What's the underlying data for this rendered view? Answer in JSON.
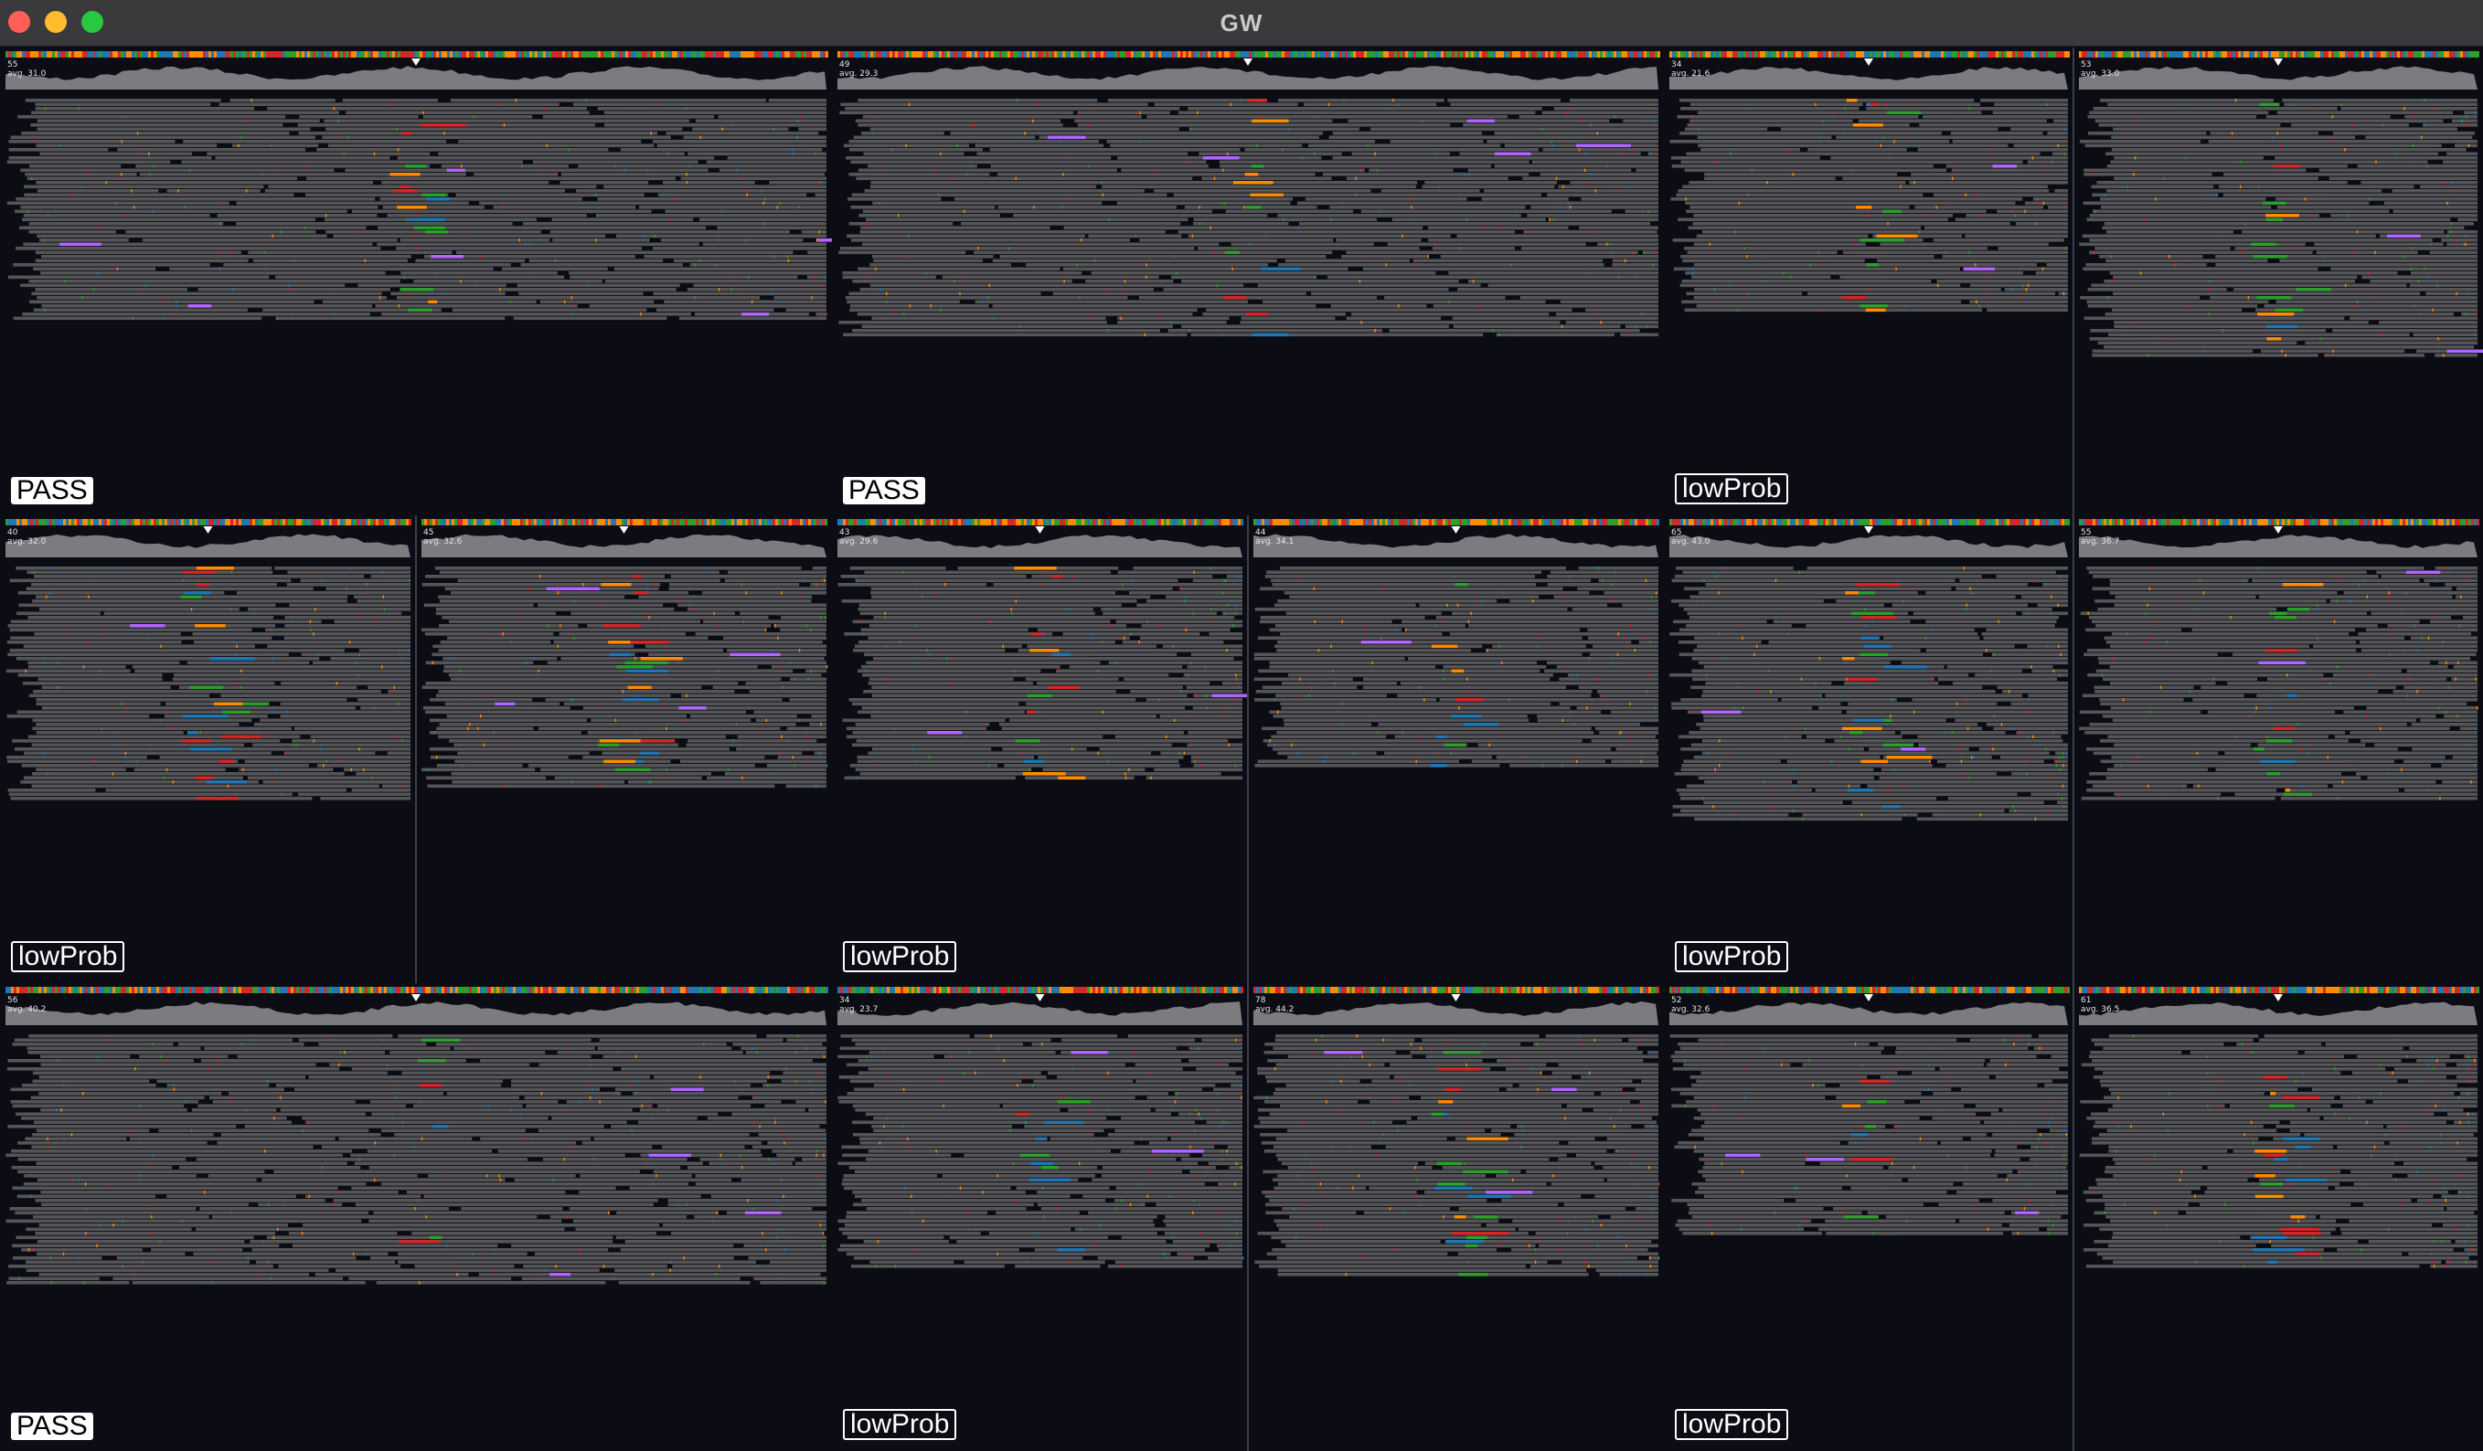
{
  "window": {
    "title": "GW"
  },
  "colors": {
    "background": "#0b0c14",
    "read": "#555558",
    "coverage": "#7c7c80",
    "pass_label_bg": "#ffffff",
    "lowprob_label_border": "#ffffff",
    "mismatch_A": "#2ca02c",
    "mismatch_C": "#1f77b4",
    "mismatch_G": "#ff8c00",
    "mismatch_T": "#d62728",
    "insertion": "#b266ff",
    "deletion": "#000000"
  },
  "tiles": [
    {
      "filter": "PASS",
      "panels": [
        {
          "max": "55",
          "avg": "avg. 31.0"
        }
      ]
    },
    {
      "filter": "PASS",
      "panels": [
        {
          "max": "49",
          "avg": "avg. 29.3"
        }
      ]
    },
    {
      "filter": "lowProb",
      "panels": [
        {
          "max": "34",
          "avg": "avg. 21.6"
        },
        {
          "max": "53",
          "avg": "avg. 33.0"
        }
      ]
    },
    {
      "filter": "lowProb",
      "panels": [
        {
          "max": "40",
          "avg": "avg. 32.0"
        },
        {
          "max": "45",
          "avg": "avg. 32.6"
        }
      ]
    },
    {
      "filter": "lowProb",
      "panels": [
        {
          "max": "43",
          "avg": "avg. 29.6"
        },
        {
          "max": "44",
          "avg": "avg. 34.1"
        }
      ]
    },
    {
      "filter": "lowProb",
      "panels": [
        {
          "max": "65",
          "avg": "avg. 43.0"
        },
        {
          "max": "55",
          "avg": "avg. 36.7"
        }
      ]
    },
    {
      "filter": "PASS",
      "panels": [
        {
          "max": "56",
          "avg": "avg. 40.2"
        }
      ]
    },
    {
      "filter": "lowProb",
      "panels": [
        {
          "max": "34",
          "avg": "avg. 23.7"
        },
        {
          "max": "78",
          "avg": "avg. 44.2"
        }
      ]
    },
    {
      "filter": "lowProb",
      "panels": [
        {
          "max": "52",
          "avg": "avg. 32.6"
        },
        {
          "max": "61",
          "avg": "avg. 36.5"
        }
      ]
    }
  ]
}
